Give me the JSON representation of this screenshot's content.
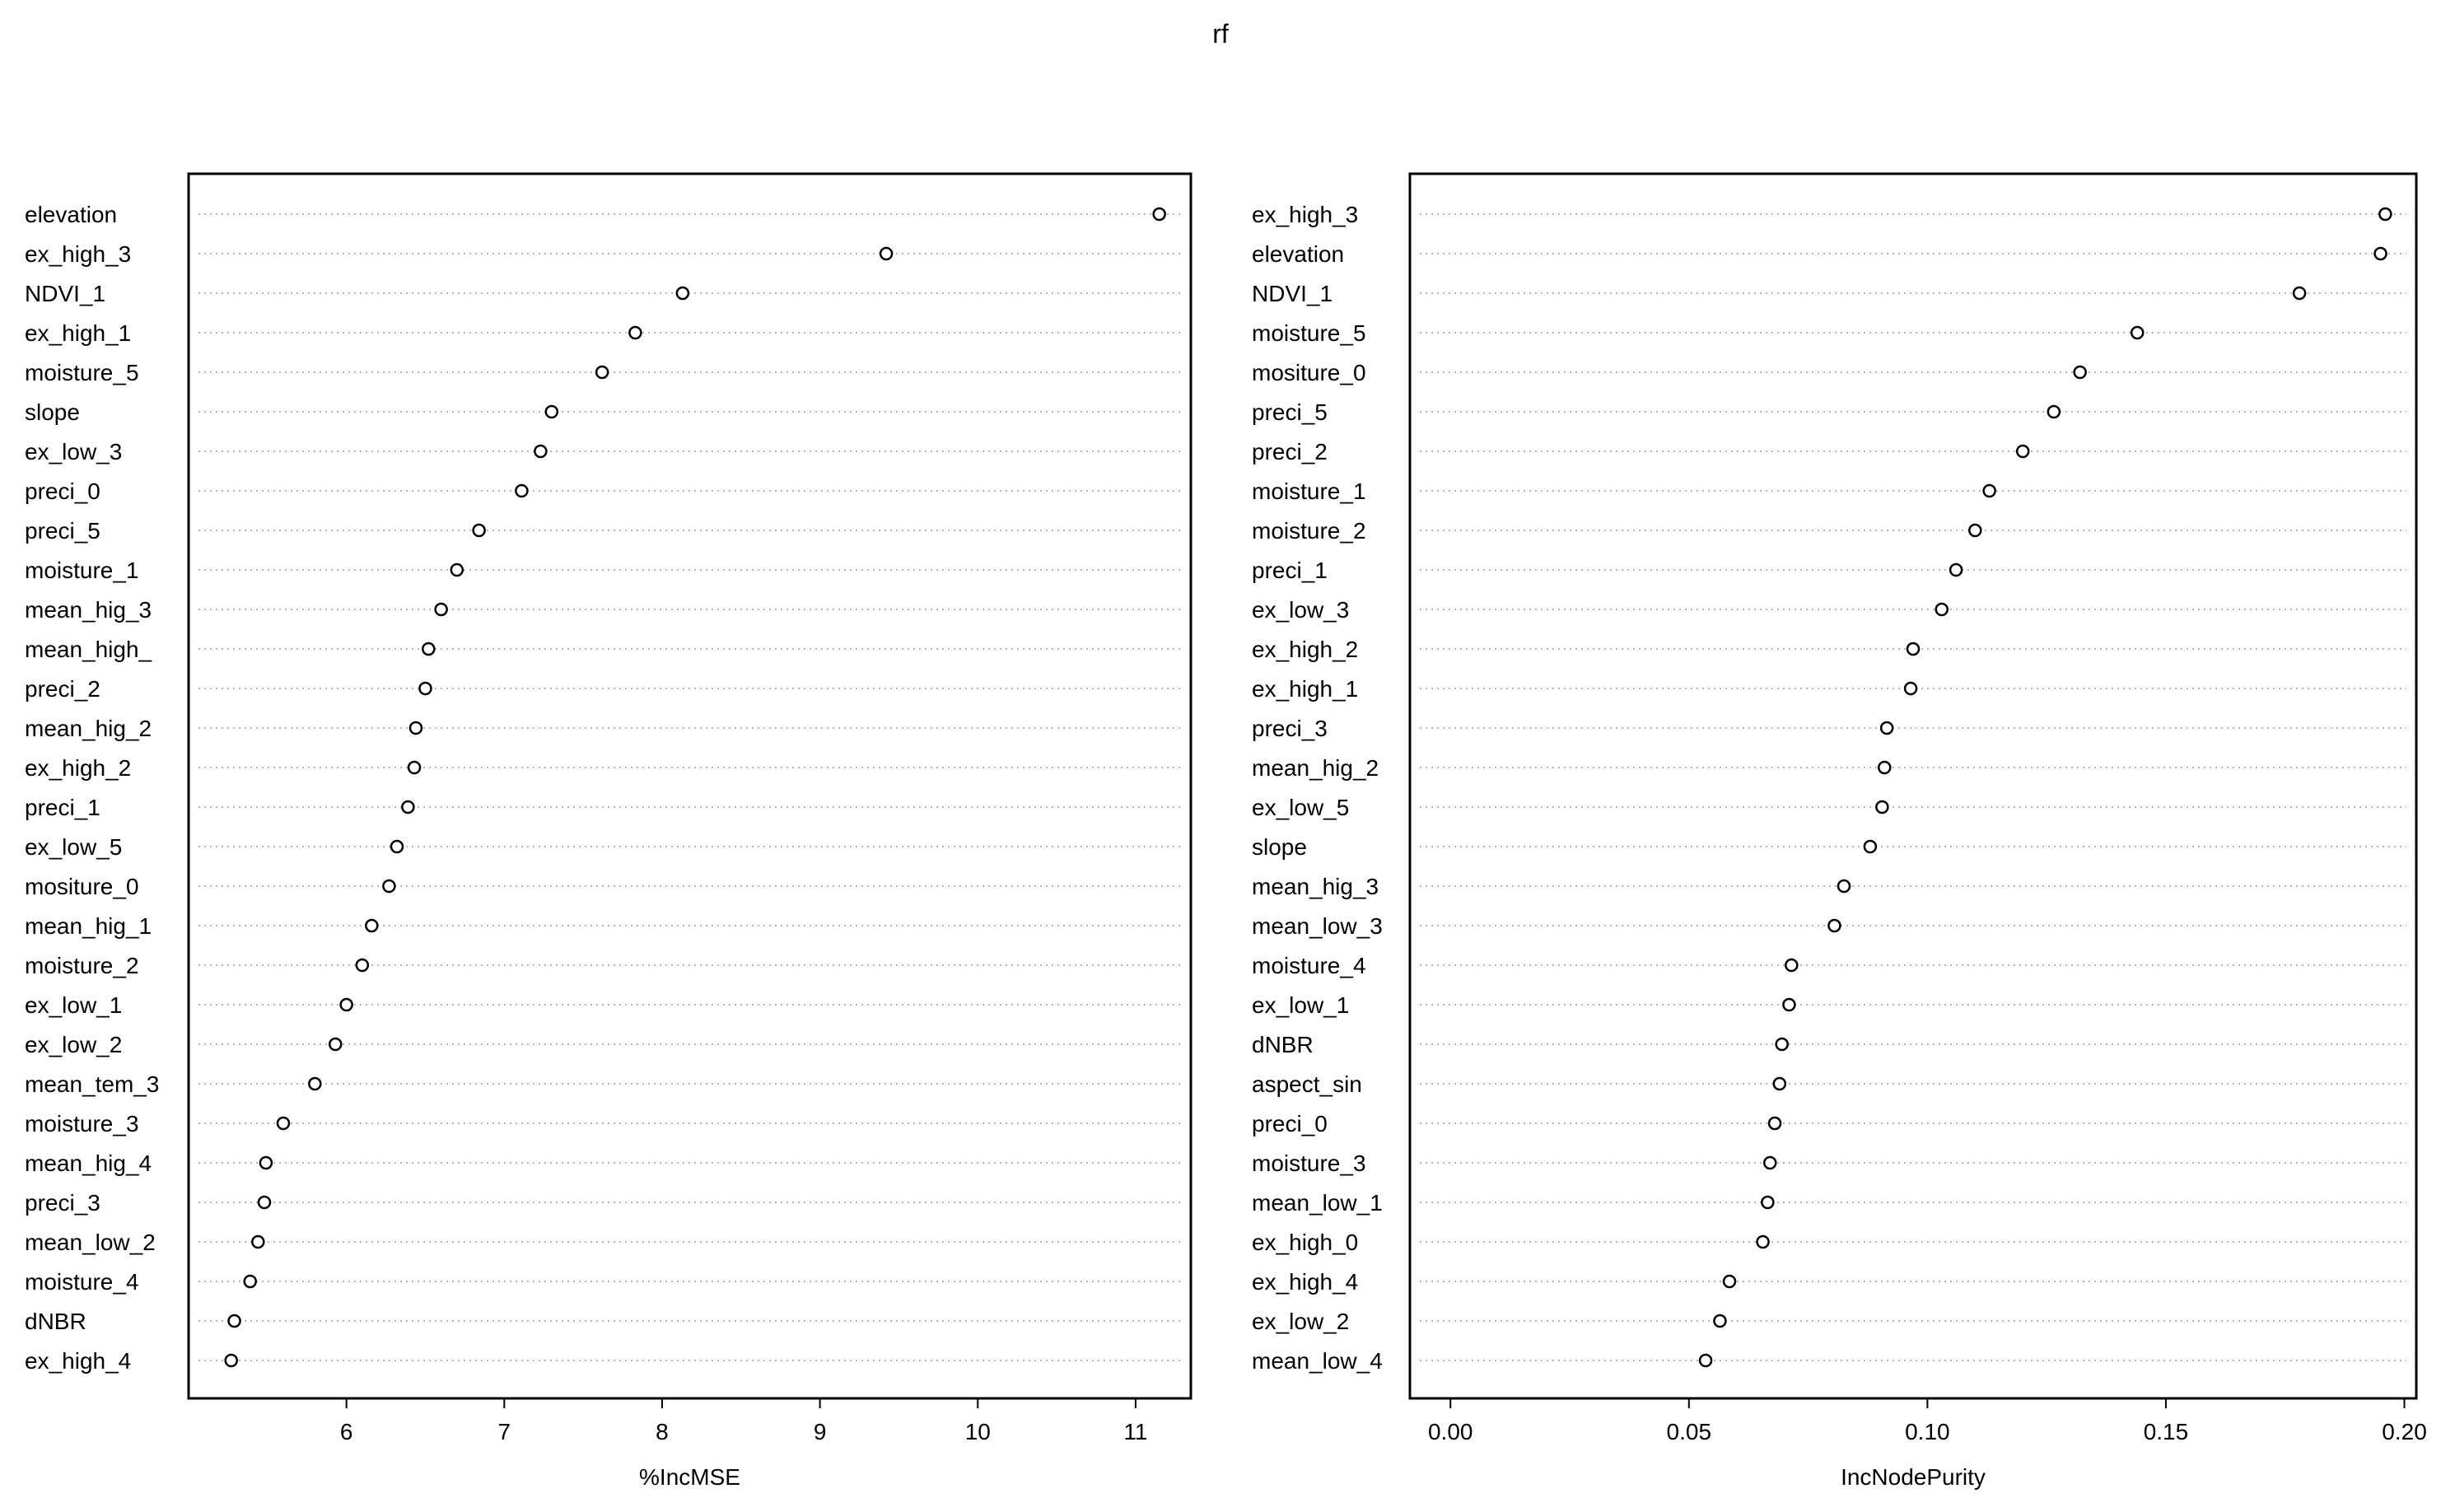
{
  "title": "rf",
  "chart_data": [
    {
      "type": "scatter",
      "xlabel": "%IncMSE",
      "xlim": [
        5.0,
        11.35
      ],
      "xticks": [
        6,
        7,
        8,
        9,
        10,
        11
      ],
      "xtick_labels": [
        "6",
        "7",
        "8",
        "9",
        "10",
        "11"
      ],
      "grid": "dotted horizontal lines per variable",
      "categories": [
        "elevation",
        "ex_high_3",
        "NDVI_1",
        "ex_high_1",
        "moisture_5",
        "slope",
        "ex_low_3",
        "preci_0",
        "preci_5",
        "moisture_1",
        "mean_hig_3",
        "mean_high_",
        "preci_2",
        "mean_hig_2",
        "ex_high_2",
        "preci_1",
        "ex_low_5",
        "mositure_0",
        "mean_hig_1",
        "moisture_2",
        "ex_low_1",
        "ex_low_2",
        "mean_tem_3",
        "moisture_3",
        "mean_hig_4",
        "preci_3",
        "mean_low_2",
        "moisture_4",
        "dNBR",
        "ex_high_4"
      ],
      "values": [
        11.15,
        9.42,
        8.13,
        7.83,
        7.62,
        7.3,
        7.23,
        7.11,
        6.84,
        6.7,
        6.6,
        6.52,
        6.5,
        6.44,
        6.43,
        6.39,
        6.32,
        6.27,
        6.16,
        6.1,
        6.0,
        5.93,
        5.8,
        5.6,
        5.49,
        5.48,
        5.44,
        5.39,
        5.29,
        5.27
      ]
    },
    {
      "type": "scatter",
      "xlabel": "IncNodePurity",
      "xlim": [
        -0.0085,
        0.2025
      ],
      "xticks": [
        0.0,
        0.05,
        0.1,
        0.15,
        0.2
      ],
      "xtick_labels": [
        "0.00",
        "0.05",
        "0.10",
        "0.15",
        "0.20"
      ],
      "grid": "dotted horizontal lines per variable",
      "categories": [
        "ex_high_3",
        "elevation",
        "NDVI_1",
        "moisture_5",
        "mositure_0",
        "preci_5",
        "preci_2",
        "moisture_1",
        "moisture_2",
        "preci_1",
        "ex_low_3",
        "ex_high_2",
        "ex_high_1",
        "preci_3",
        "mean_hig_2",
        "ex_low_5",
        "slope",
        "mean_hig_3",
        "mean_low_3",
        "moisture_4",
        "ex_low_1",
        "dNBR",
        "aspect_sin",
        "preci_0",
        "moisture_3",
        "mean_low_1",
        "ex_high_0",
        "ex_high_4",
        "ex_low_2",
        "mean_low_4"
      ],
      "values": [
        0.196,
        0.195,
        0.178,
        0.144,
        0.132,
        0.1265,
        0.12,
        0.113,
        0.11,
        0.106,
        0.103,
        0.097,
        0.0965,
        0.0915,
        0.091,
        0.0905,
        0.088,
        0.0825,
        0.0805,
        0.0715,
        0.071,
        0.0695,
        0.069,
        0.068,
        0.067,
        0.0665,
        0.0655,
        0.0585,
        0.0565,
        0.0535
      ]
    }
  ]
}
